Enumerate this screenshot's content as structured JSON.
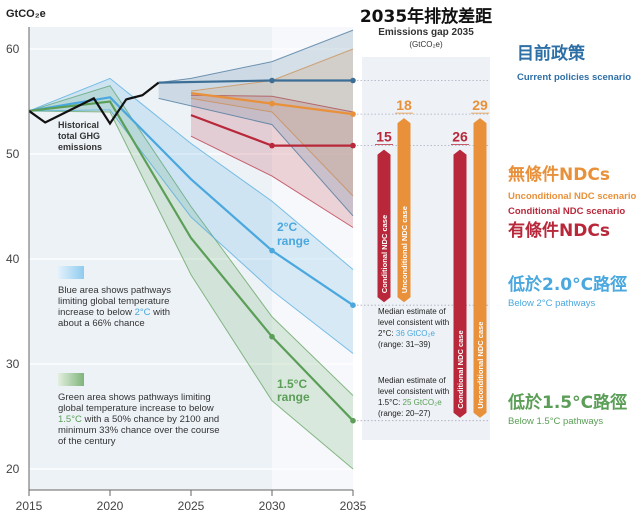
{
  "chart_data": {
    "type": "area",
    "ylabel": "GtCO₂e",
    "xlim": [
      2015,
      2035
    ],
    "ylim": [
      18,
      62
    ],
    "x_ticks": [
      "2015",
      "2020",
      "2025",
      "2030",
      "2035"
    ],
    "y_ticks": [
      "20",
      "30",
      "40",
      "50",
      "60"
    ],
    "grid": true,
    "historical": {
      "label": [
        "Historical",
        "total GHG",
        "emissions"
      ],
      "color": "#111111",
      "points": [
        [
          2015,
          54.1
        ],
        [
          2016,
          53.0
        ],
        [
          2019,
          55.3
        ],
        [
          2020,
          52.9
        ],
        [
          2021,
          55.2
        ],
        [
          2022,
          55.6
        ],
        [
          2023,
          56.8
        ]
      ]
    },
    "series": [
      {
        "key": "current",
        "color": "#3d6f96",
        "median": [
          [
            2023,
            56.8
          ],
          [
            2030,
            57.0
          ],
          [
            2035,
            57.0
          ]
        ],
        "upper": [
          [
            2023,
            56.8
          ],
          [
            2025,
            57.2
          ],
          [
            2030,
            58.8
          ],
          [
            2035,
            61.8
          ]
        ],
        "lower": [
          [
            2023,
            55.3
          ],
          [
            2030,
            52.8
          ],
          [
            2035,
            44.1
          ]
        ]
      },
      {
        "key": "unconditional",
        "color": "#e8913a",
        "median": [
          [
            2025,
            55.8
          ],
          [
            2030,
            54.8
          ],
          [
            2035,
            53.8
          ]
        ],
        "upper": [
          [
            2025,
            56.0
          ],
          [
            2030,
            57.0
          ],
          [
            2035,
            60.0
          ]
        ],
        "lower": [
          [
            2025,
            55.3
          ],
          [
            2030,
            54.0
          ],
          [
            2035,
            46.0
          ]
        ]
      },
      {
        "key": "conditional",
        "color": "#b8283a",
        "median": [
          [
            2025,
            53.7
          ],
          [
            2030,
            50.8
          ],
          [
            2035,
            50.8
          ]
        ],
        "upper": [
          [
            2025,
            55.6
          ],
          [
            2030,
            55.5
          ],
          [
            2035,
            54.0
          ]
        ],
        "lower": [
          [
            2025,
            51.7
          ],
          [
            2030,
            47.9
          ],
          [
            2035,
            43.0
          ]
        ]
      },
      {
        "key": "2c",
        "color": "#4aa8de",
        "label": [
          "2°C",
          "range"
        ],
        "median": [
          [
            2015,
            54.1
          ],
          [
            2020,
            55.4
          ],
          [
            2025,
            47.6
          ],
          [
            2030,
            40.8
          ],
          [
            2035,
            35.6
          ]
        ],
        "upper": [
          [
            2015,
            54.1
          ],
          [
            2020,
            57.2
          ],
          [
            2025,
            51.0
          ],
          [
            2030,
            45.5
          ],
          [
            2035,
            39.0
          ]
        ],
        "lower": [
          [
            2015,
            54.1
          ],
          [
            2020,
            54.2
          ],
          [
            2025,
            44.0
          ],
          [
            2030,
            37.0
          ],
          [
            2035,
            31.0
          ]
        ]
      },
      {
        "key": "15c",
        "color": "#5b9e57",
        "label": [
          "1.5°C",
          "range"
        ],
        "median": [
          [
            2015,
            54.1
          ],
          [
            2020,
            55.0
          ],
          [
            2025,
            42.0
          ],
          [
            2030,
            32.6
          ],
          [
            2035,
            24.6
          ]
        ],
        "upper": [
          [
            2015,
            54.1
          ],
          [
            2020,
            56.5
          ],
          [
            2025,
            45.0
          ],
          [
            2030,
            34.5
          ],
          [
            2035,
            27.0
          ]
        ],
        "lower": [
          [
            2015,
            54.1
          ],
          [
            2020,
            54.0
          ],
          [
            2025,
            38.5
          ],
          [
            2030,
            26.5
          ],
          [
            2035,
            20.0
          ]
        ]
      }
    ],
    "gap": {
      "title_zh": "2035年排放差距",
      "title_en": "Emissions gap 2035",
      "unit": "(GtCO₂e)",
      "bars": [
        {
          "value": "15",
          "label": "Conditional NDC case",
          "color": "#b8283a",
          "from": 50.8,
          "to": 35.6
        },
        {
          "value": "18",
          "label": "Unconditional NDC case",
          "color": "#e8913a",
          "from": 53.8,
          "to": 35.6
        },
        {
          "value": "26",
          "label": "Conditional NDC case",
          "color": "#b8283a",
          "from": 50.8,
          "to": 24.6
        },
        {
          "value": "29",
          "label": "Unconditional NDC case",
          "color": "#e8913a",
          "from": 53.8,
          "to": 24.6
        }
      ],
      "median_2c": [
        "Median estimate of",
        "level consistent with",
        "2°C: ",
        "36 GtCO₂e",
        "(range: 31–39)"
      ],
      "median_15c": [
        "Median estimate of",
        "level consistent with",
        "1.5°C: ",
        "25 GtCO₂e",
        "(range: 20–27)"
      ]
    },
    "legend_blue": [
      "Blue area shows pathways",
      "limiting global temperature",
      "increase to below ",
      "2°C",
      " with",
      "about a 66% chance"
    ],
    "legend_green": [
      "Green area shows pathways limiting",
      "global temperature increase to below",
      "1.5°C",
      " with a 50% chance by 2100 and",
      "minimum 33% chance over the course",
      "of the century"
    ]
  },
  "labels": {
    "current_zh": "目前政策",
    "current_en": "Current policies scenario",
    "uncond_zh": "無條件NDCs",
    "uncond_en": "Unconditional NDC scenario",
    "cond_en": "Conditional NDC scenario",
    "cond_zh": "有條件NDCs",
    "below2_zh": "低於2.0°C路徑",
    "below2_en": "Below 2°C pathways",
    "below15_zh": "低於1.5°C路徑",
    "below15_en": "Below 1.5°C pathways"
  },
  "colors": {
    "current": "#2e6fa6",
    "unconditional": "#e8913a",
    "conditional": "#b8283a",
    "2c": "#4aa8de",
    "15c": "#5b9e57"
  }
}
